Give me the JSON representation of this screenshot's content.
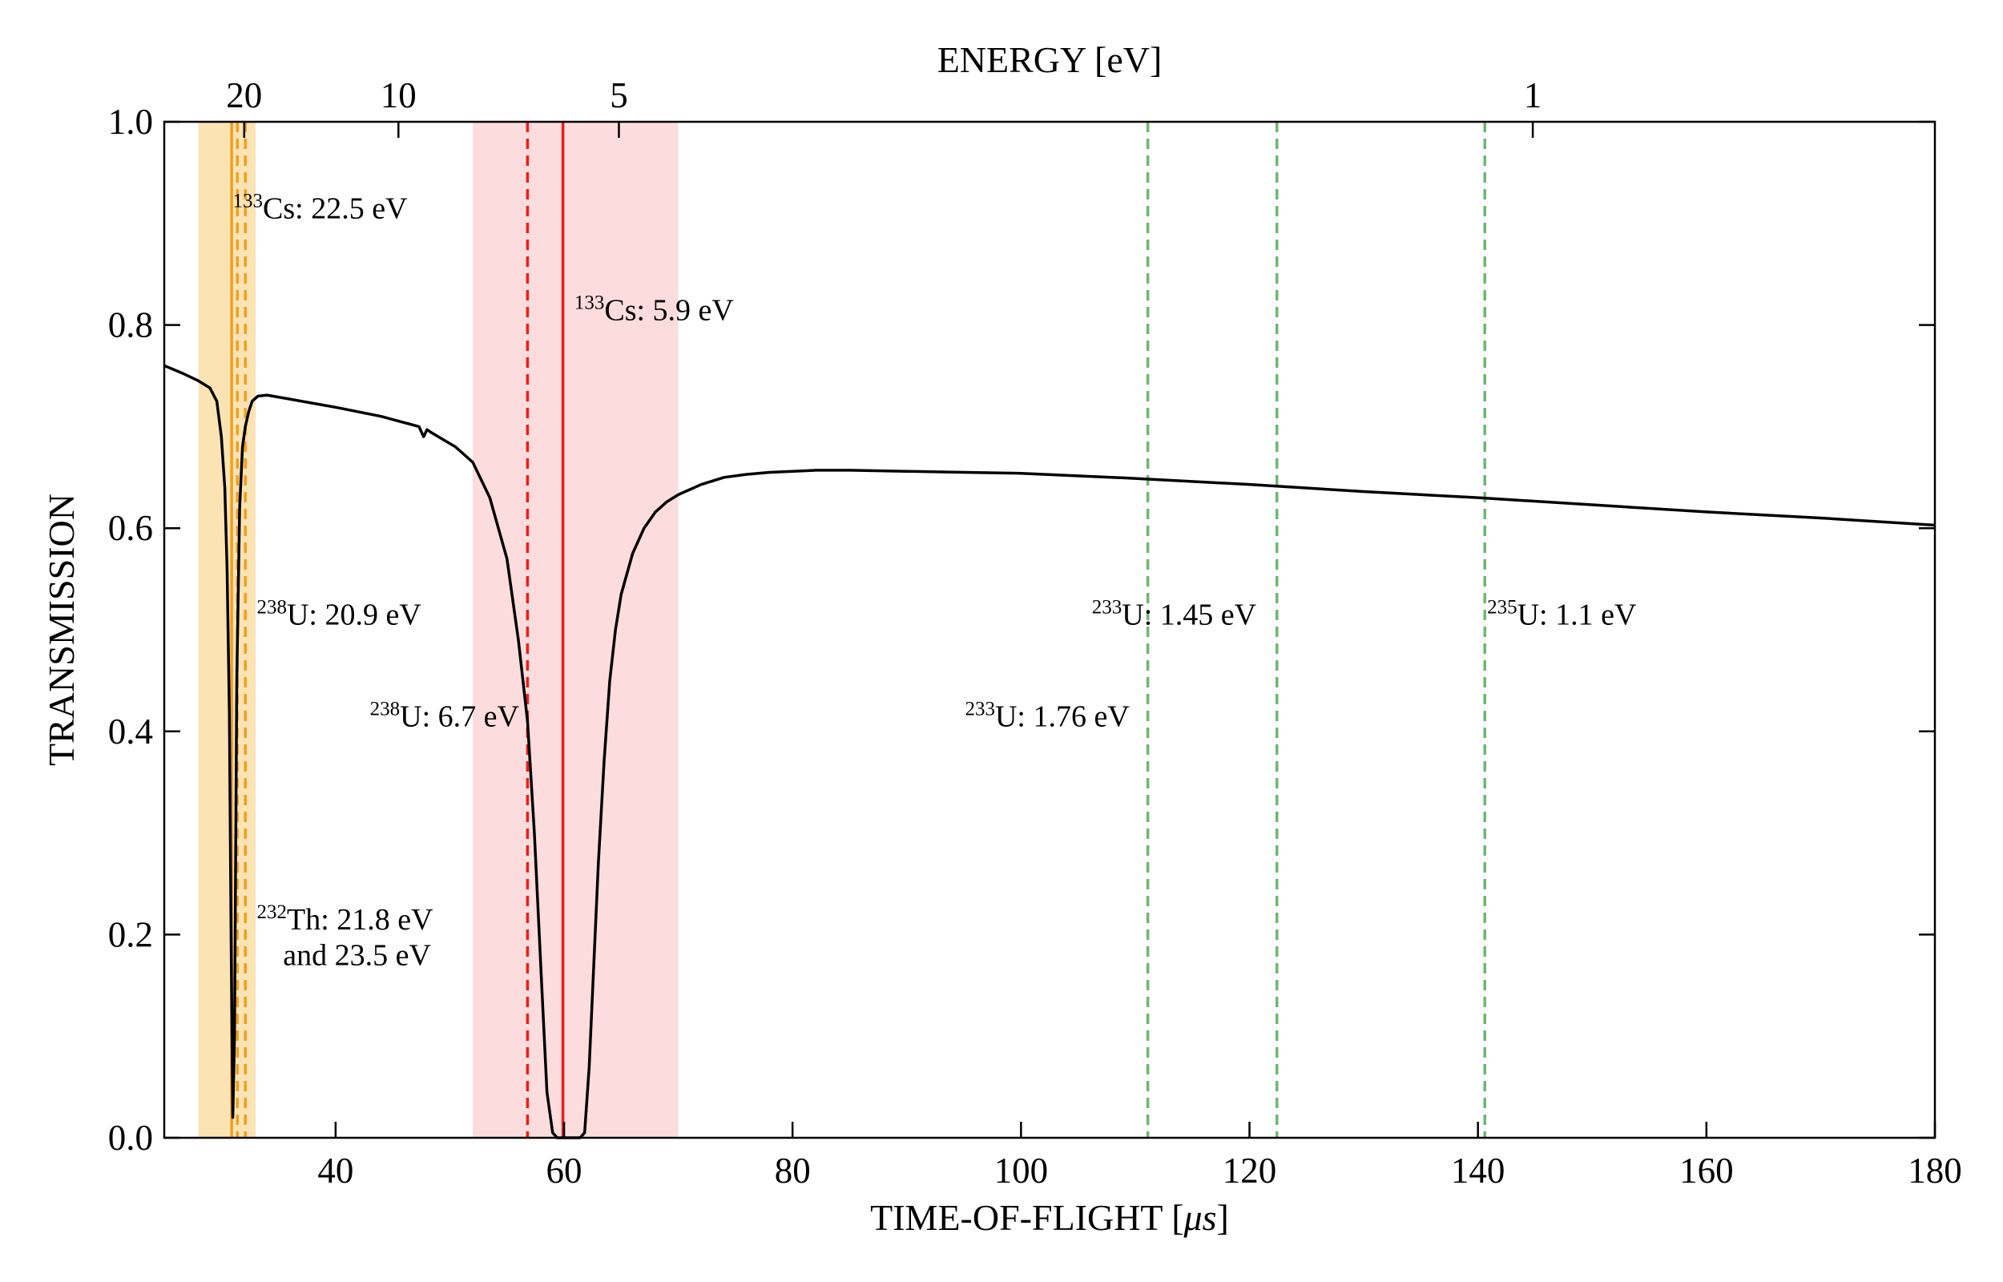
{
  "chart_data": {
    "type": "line",
    "xlabel": "TIME-OF-FLIGHT [",
    "xlabel_unit": "μs",
    "xlabel_end": "]",
    "ylabel": "TRANSMISSION",
    "top_axis_label": "ENERGY [eV]",
    "xlim": [
      25,
      180
    ],
    "ylim": [
      0.0,
      1.0
    ],
    "x_ticks": [
      {
        "value": 40,
        "label": "40"
      },
      {
        "value": 60,
        "label": "60"
      },
      {
        "value": 80,
        "label": "80"
      },
      {
        "value": 100,
        "label": "100"
      },
      {
        "value": 120,
        "label": "120"
      },
      {
        "value": 140,
        "label": "140"
      },
      {
        "value": 160,
        "label": "160"
      },
      {
        "value": 180,
        "label": "180"
      }
    ],
    "y_ticks": [
      {
        "value": 0.0,
        "label": "0.0"
      },
      {
        "value": 0.2,
        "label": "0.2"
      },
      {
        "value": 0.4,
        "label": "0.4"
      },
      {
        "value": 0.6,
        "label": "0.6"
      },
      {
        "value": 0.8,
        "label": "0.8"
      },
      {
        "value": 1.0,
        "label": "1.0"
      }
    ],
    "top_ticks": [
      {
        "tof": 32.0,
        "label": "20"
      },
      {
        "tof": 45.5,
        "label": "10"
      },
      {
        "tof": 64.8,
        "label": "5"
      },
      {
        "tof": 144.8,
        "label": "1"
      }
    ],
    "bands": [
      {
        "name": "orange-band",
        "x0": 28,
        "x1": 33,
        "color": "#fbe3b4"
      },
      {
        "name": "red-band",
        "x0": 52,
        "x1": 70,
        "color": "#fcdcdc"
      }
    ],
    "vlines": [
      {
        "name": "cs-22-5-line",
        "x": 30.9,
        "color": "#f0a020",
        "style": "solid"
      },
      {
        "name": "u238-20-9-line",
        "x": 32.1,
        "color": "#f0a020",
        "style": "dashed"
      },
      {
        "name": "th232-21-8-line",
        "x": 31.4,
        "color": "#f0a020",
        "style": "dashed"
      },
      {
        "name": "u238-6-7-line",
        "x": 56.8,
        "color": "#ee1c1c",
        "style": "dashed"
      },
      {
        "name": "cs-5-9-line",
        "x": 59.9,
        "color": "#ee1c1c",
        "style": "solid"
      },
      {
        "name": "u233-1-76-line",
        "x": 111.1,
        "color": "#6cb86c",
        "style": "dashed"
      },
      {
        "name": "u233-1-45-line",
        "x": 122.4,
        "color": "#6cb86c",
        "style": "dashed"
      },
      {
        "name": "u235-1-1-line",
        "x": 140.6,
        "color": "#6cb86c",
        "style": "dashed"
      }
    ],
    "annotations": [
      {
        "name": "annot-cs-22-5",
        "sup": "133",
        "text": "Cs: 22.5 eV",
        "x": 31.0,
        "y": 0.905
      },
      {
        "name": "annot-cs-5-9",
        "sup": "133",
        "text": "Cs: 5.9 eV",
        "x": 60.9,
        "y": 0.805
      },
      {
        "name": "annot-u238-20-9",
        "sup": "238",
        "text": "U: 20.9 eV",
        "x": 33.1,
        "y": 0.505
      },
      {
        "name": "annot-u238-6-7",
        "sup": "238",
        "text": "U: 6.7 eV",
        "x": 43.0,
        "y": 0.405
      },
      {
        "name": "annot-u233-1-76",
        "sup": "233",
        "text": "U: 1.76 eV",
        "x": 95.1,
        "y": 0.405
      },
      {
        "name": "annot-u233-1-45",
        "sup": "233",
        "text": "U: 1.45 eV",
        "x": 106.2,
        "y": 0.505
      },
      {
        "name": "annot-u235-1-1",
        "sup": "235",
        "text": "U: 1.1 eV",
        "x": 140.8,
        "y": 0.505
      },
      {
        "name": "annot-th232",
        "sup": "232",
        "text": "Th: 21.8 eV",
        "x": 33.1,
        "y": 0.205
      },
      {
        "name": "annot-th232-line2",
        "sup": "",
        "text": "and 23.5 eV",
        "x": 35.4,
        "y": 0.17
      }
    ],
    "series": [
      {
        "name": "transmission",
        "color": "#000000",
        "x": [
          25.0,
          26.5,
          28.0,
          29.0,
          29.6,
          30.0,
          30.3,
          30.5,
          30.7,
          30.85,
          31.0,
          31.15,
          31.35,
          31.6,
          31.85,
          32.1,
          32.4,
          32.7,
          33.2,
          34.0,
          36.0,
          40.0,
          44.0,
          47.3,
          47.7,
          48.0,
          48.4,
          49.0,
          50.5,
          52.0,
          53.5,
          55.0,
          56.0,
          56.8,
          57.4,
          58.0,
          58.5,
          59.0,
          59.4,
          59.8,
          60.2,
          60.6,
          61.0,
          61.4,
          61.8,
          62.2,
          62.6,
          63.0,
          63.5,
          64.0,
          64.5,
          65.0,
          66.0,
          67.0,
          68.0,
          69.0,
          70.0,
          72.0,
          74.0,
          76.0,
          78.0,
          80.0,
          82.0,
          85.0,
          90.0,
          95.0,
          100.0,
          110.0,
          120.0,
          130.0,
          140.0,
          150.0,
          160.0,
          170.0,
          180.0
        ],
        "y": [
          0.76,
          0.753,
          0.745,
          0.738,
          0.725,
          0.69,
          0.64,
          0.56,
          0.42,
          0.2,
          0.02,
          0.1,
          0.45,
          0.62,
          0.68,
          0.7,
          0.715,
          0.725,
          0.73,
          0.731,
          0.727,
          0.719,
          0.71,
          0.7,
          0.69,
          0.697,
          0.694,
          0.69,
          0.68,
          0.665,
          0.63,
          0.57,
          0.49,
          0.41,
          0.3,
          0.16,
          0.045,
          0.005,
          0.0,
          0.0,
          0.0,
          0.0,
          0.0,
          0.0,
          0.005,
          0.07,
          0.17,
          0.27,
          0.37,
          0.45,
          0.5,
          0.535,
          0.575,
          0.6,
          0.616,
          0.626,
          0.633,
          0.643,
          0.65,
          0.653,
          0.655,
          0.656,
          0.657,
          0.657,
          0.656,
          0.655,
          0.654,
          0.649,
          0.643,
          0.636,
          0.63,
          0.623,
          0.616,
          0.61,
          0.603
        ]
      }
    ]
  }
}
